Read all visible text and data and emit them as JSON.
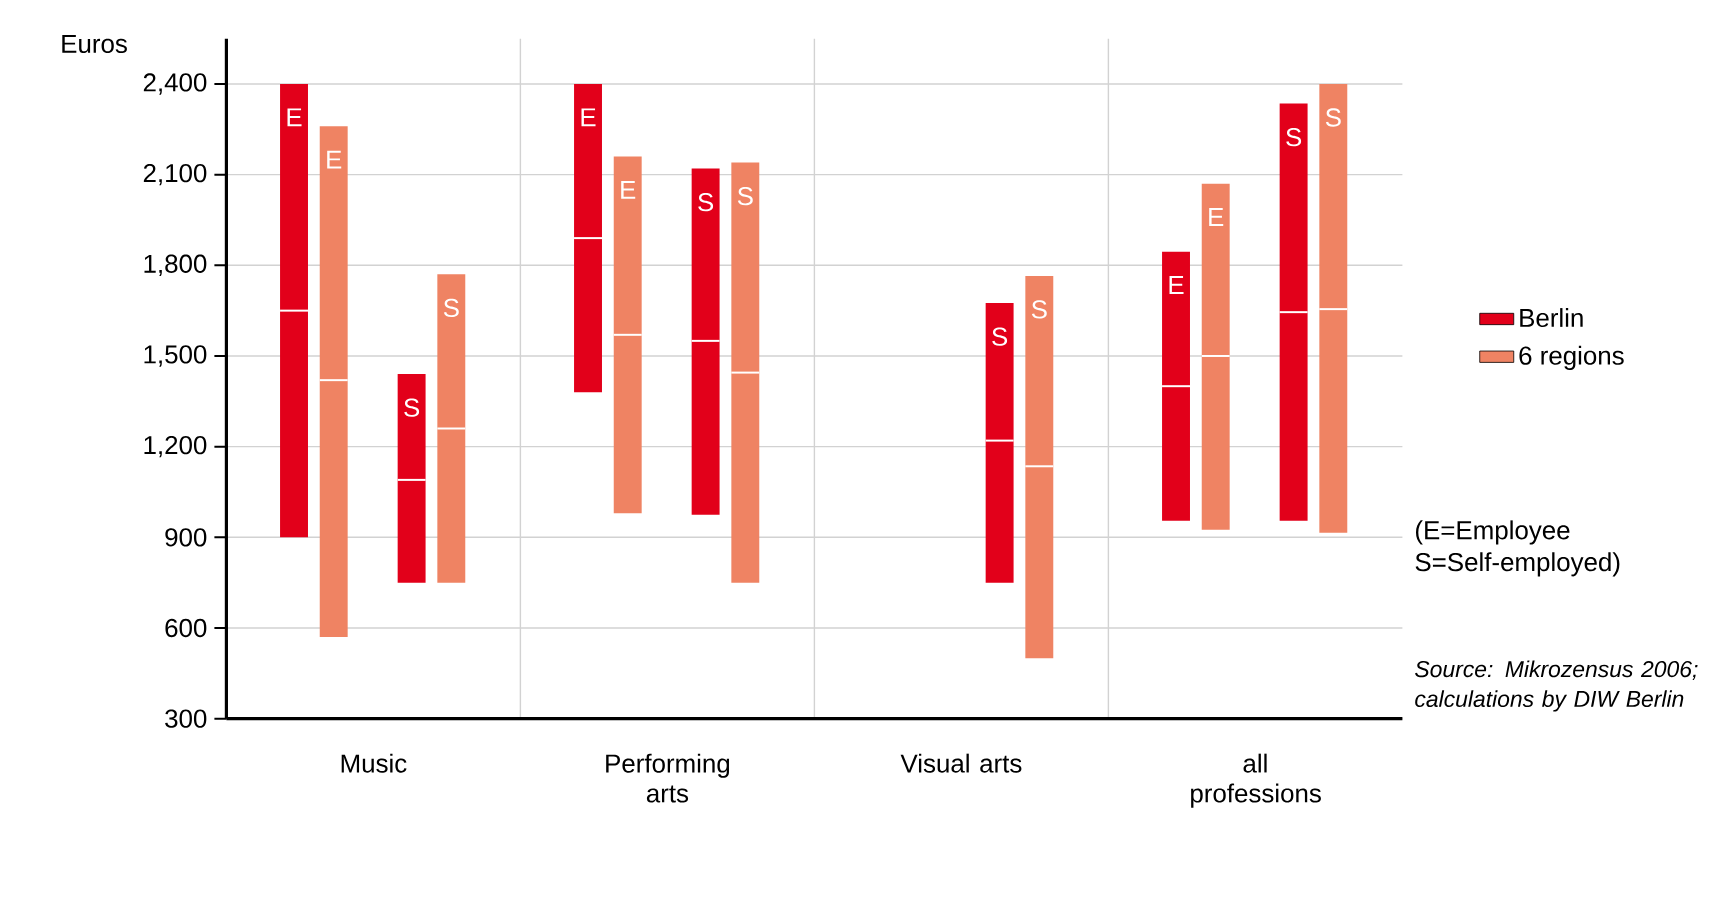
{
  "chart_data": {
    "type": "box",
    "ylabel": "Euros",
    "categories": [
      "Music",
      "Performing arts",
      "Visual arts",
      "all professions"
    ],
    "series": [
      {
        "name": "Berlin",
        "color": "#e2001a",
        "value_labels": [
          "E",
          "E",
          null,
          "E"
        ],
        "boxes": [
          {
            "low": 900,
            "q1": 900,
            "median": 1650,
            "q3": 2400,
            "high": 2400
          },
          {
            "low": 1380,
            "q1": 1380,
            "median": 1890,
            "q3": 2400,
            "high": 2400
          },
          null,
          {
            "low": 955,
            "q1": 955,
            "median": 1400,
            "q3": 1845,
            "high": 1845
          }
        ]
      },
      {
        "name": "6 regions",
        "color": "#ef8363",
        "value_labels": [
          "E",
          "E",
          null,
          "E"
        ],
        "boxes": [
          {
            "low": 570,
            "q1": 570,
            "median": 1420,
            "q3": 2260,
            "high": 2260
          },
          {
            "low": 980,
            "q1": 980,
            "median": 1570,
            "q3": 2160,
            "high": 2160
          },
          null,
          {
            "low": 925,
            "q1": 925,
            "median": 1500,
            "q3": 2070,
            "high": 2070
          }
        ]
      },
      {
        "color": "#e2001a",
        "value_labels": [
          "S",
          "S",
          "S",
          "S"
        ],
        "boxes": [
          {
            "low": 750,
            "q1": 750,
            "median": 1090,
            "q3": 1440,
            "high": 1440
          },
          {
            "low": 975,
            "q1": 975,
            "median": 1550,
            "q3": 2120,
            "high": 2120
          },
          {
            "low": 750,
            "q1": 750,
            "median": 1220,
            "q3": 1675,
            "high": 1675
          },
          {
            "low": 955,
            "q1": 955,
            "median": 1645,
            "q3": 2335,
            "high": 2335
          }
        ]
      },
      {
        "color": "#ef8363",
        "value_labels": [
          "S",
          "S",
          "S",
          "S"
        ],
        "boxes": [
          {
            "low": 750,
            "q1": 750,
            "median": 1260,
            "q3": 1770,
            "high": 1770
          },
          {
            "low": 750,
            "q1": 750,
            "median": 1445,
            "q3": 2140,
            "high": 2140
          },
          {
            "low": 500,
            "q1": 500,
            "median": 1135,
            "q3": 1765,
            "high": 1765
          },
          {
            "low": 915,
            "q1": 915,
            "median": 1655,
            "q3": 2400,
            "high": 2400
          }
        ]
      }
    ],
    "ylim": [
      300,
      2550
    ],
    "yticks": [
      300,
      600,
      900,
      {
        "value": 1200,
        "label": "1,200"
      },
      {
        "value": 1500,
        "label": "1,500"
      },
      {
        "value": 1800,
        "label": "1,800"
      },
      {
        "value": 2100,
        "label": "2,100"
      },
      {
        "value": 2400,
        "label": "2,400"
      }
    ],
    "grid": true,
    "legend": "right",
    "annotations": [
      "(E=Employee S=Self-employed)",
      "Source: Mikrozensus 2006; calculations by DIW Berlin"
    ]
  }
}
